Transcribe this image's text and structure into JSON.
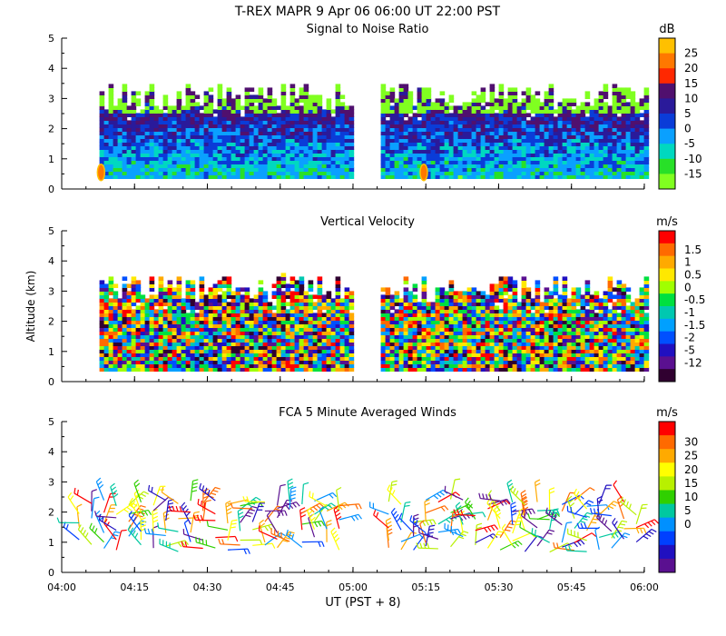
{
  "header": {
    "title": "T-REX   MAPR   9 Apr 06   06:00 UT   22:00   PST"
  },
  "x_axis": {
    "label": "UT  (PST + 8)",
    "range_hours": [
      4.0,
      6.0
    ],
    "ticks": [
      {
        "label": "04:00",
        "value": 4.0
      },
      {
        "label": "04:15",
        "value": 4.25
      },
      {
        "label": "04:30",
        "value": 4.5
      },
      {
        "label": "04:45",
        "value": 4.75
      },
      {
        "label": "05:00",
        "value": 5.0
      },
      {
        "label": "05:15",
        "value": 5.25
      },
      {
        "label": "05:30",
        "value": 5.5
      },
      {
        "label": "05:45",
        "value": 5.75
      },
      {
        "label": "06:00",
        "value": 6.0
      }
    ]
  },
  "chart_data": [
    {
      "id": "snr",
      "type": "heatmap",
      "title": "Signal to Noise Ratio",
      "ylabel": "",
      "ylim": [
        0,
        5
      ],
      "y_ticks": [
        "0",
        "1",
        "2",
        "3",
        "4",
        "5"
      ],
      "data_gap_hours": [
        4.99,
        5.09
      ],
      "data_altitude_km": [
        0.35,
        3.0
      ],
      "colorbar": {
        "unit": "dB",
        "labels": [
          "25",
          "20",
          "15",
          "10",
          "5",
          "0",
          "-5",
          "-10",
          "-15"
        ],
        "colors": [
          "#ffc000",
          "#ff7800",
          "#ff2800",
          "#50106e",
          "#2a1a9a",
          "#0a3cd8",
          "#0aa0ff",
          "#00d8c0",
          "#28e028",
          "#80ff20"
        ]
      },
      "approx_level_description": "mostly -15 to 5 dB, strong return near 0.5 km"
    },
    {
      "id": "vv",
      "type": "heatmap",
      "title": "Vertical Velocity",
      "ylabel": "Altitude (km)",
      "ylim": [
        0,
        5
      ],
      "y_ticks": [
        "0",
        "1",
        "2",
        "3",
        "4",
        "5"
      ],
      "data_gap_hours": [
        4.99,
        5.09
      ],
      "data_altitude_km": [
        0.35,
        3.0
      ],
      "colorbar": {
        "unit": "m/s",
        "labels": [
          "1.5",
          "1",
          "0.5",
          "0",
          "-0.5",
          "-1",
          "-1.5",
          "-2",
          "-5",
          "-12"
        ],
        "colors": [
          "#ff0000",
          "#ff6a00",
          "#ffaa00",
          "#ffe800",
          "#a0ff00",
          "#00e040",
          "#00c8b0",
          "#00a0ff",
          "#0050ff",
          "#2010c0",
          "#5a1090",
          "#300030"
        ]
      }
    },
    {
      "id": "winds",
      "type": "scatter",
      "title": "FCA 5 Minute Averaged Winds",
      "ylabel": "",
      "ylim": [
        0,
        5
      ],
      "y_ticks": [
        "0",
        "1",
        "2",
        "3",
        "4",
        "5"
      ],
      "marker": "wind barb",
      "barb_altitudes_km": [
        0.8,
        1.1,
        1.4,
        1.7,
        2.0,
        2.3
      ],
      "colorbar": {
        "unit": "m/s",
        "labels": [
          "30",
          "25",
          "20",
          "15",
          "10",
          "5",
          "0"
        ],
        "colors": [
          "#ff0000",
          "#ff6a00",
          "#ffaa00",
          "#ffff00",
          "#b8f000",
          "#30d000",
          "#00c8a0",
          "#0090ff",
          "#0040ff",
          "#2010c0",
          "#5a1090"
        ]
      },
      "approx_speed_range_ms": [
        0,
        30
      ]
    }
  ]
}
